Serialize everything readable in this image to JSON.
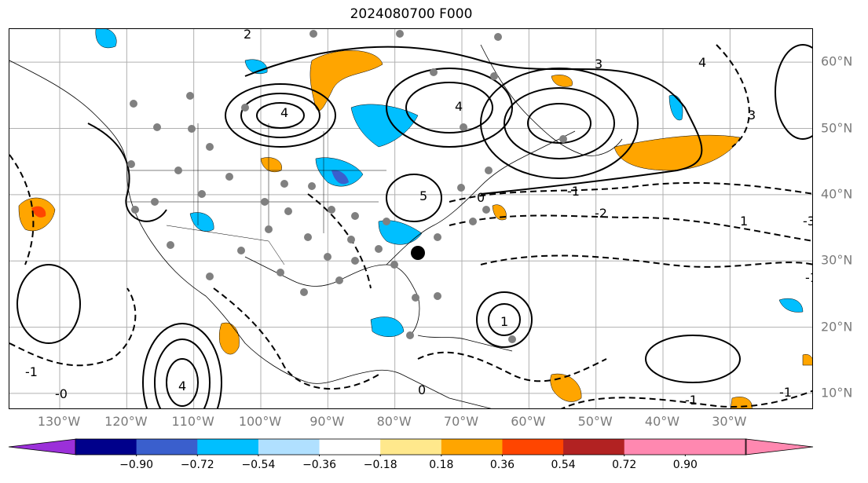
{
  "title": "2024080700 F000",
  "map": {
    "lon_labels": [
      "130°W",
      "120°W",
      "110°W",
      "100°W",
      "90°W",
      "80°W",
      "70°W",
      "60°W",
      "50°W",
      "40°W",
      "30°W"
    ],
    "lon_values": [
      -130,
      -120,
      -110,
      -100,
      -90,
      -80,
      -70,
      -60,
      -50,
      -40,
      -30
    ],
    "lat_labels": [
      "60°N",
      "50°N",
      "40°N",
      "30°N",
      "20°N",
      "10°N"
    ],
    "lat_values": [
      60,
      50,
      40,
      30,
      20,
      10
    ],
    "extent": {
      "lon_min": -137.5,
      "lon_max": -17.5,
      "lat_min": 7.5,
      "lat_max": 65
    },
    "gridline_color": "#b0b0b0",
    "contour_labels": [
      "2",
      "4",
      "3",
      "5",
      "0",
      "-1",
      "-2",
      "1",
      "-3",
      "-0"
    ]
  },
  "colorbar": {
    "ticks": [
      "−0.90",
      "−0.72",
      "−0.54",
      "−0.36",
      "−0.18",
      "0.18",
      "0.36",
      "0.54",
      "0.72",
      "0.90"
    ],
    "colors": [
      "#9b30d9",
      "#00008b",
      "#3a5fcd",
      "#00bfff",
      "#b0e0ff",
      "#ffffff",
      "#ffe88c",
      "#ffa500",
      "#ff4500",
      "#b22222",
      "#ff88b0",
      "#ff88b0"
    ],
    "extend": "both"
  }
}
